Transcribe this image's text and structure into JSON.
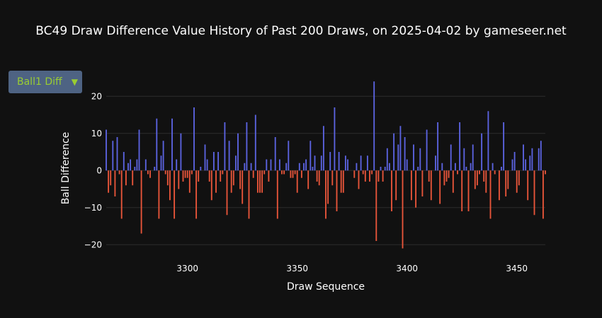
{
  "title": "BC49 Draw Difference Value History of Past 200 Draws, on 2025-04-02 by gameseer.net",
  "dropdown": {
    "selected": "Ball1 Diff",
    "arrow_icon": "triangle-down-icon"
  },
  "colors": {
    "positive": "#5b63e0",
    "negative": "#e8553a",
    "grid": "#2c2c2c",
    "background": "#111111",
    "dropdown_bg": "#4e6383",
    "dropdown_text": "#9acd32"
  },
  "chart_data": {
    "type": "bar",
    "xlabel": "Draw Sequence",
    "ylabel": "Ball Difference",
    "xlim": [
      3263,
      3463
    ],
    "ylim": [
      -23,
      25
    ],
    "xticks": [
      3300,
      3350,
      3400,
      3450
    ],
    "yticks": [
      -20,
      -10,
      0,
      10,
      20
    ],
    "grid": true,
    "x_start": 3263,
    "values": [
      11,
      -6,
      -4,
      8,
      -7,
      9,
      -1,
      -13,
      5,
      -4,
      2,
      3,
      -4,
      1,
      3,
      11,
      -17,
      0,
      3,
      -1,
      -2,
      0,
      1,
      14,
      -13,
      4,
      8,
      -1,
      -4,
      -8,
      14,
      -13,
      3,
      -5,
      10,
      -3,
      -2,
      -2,
      -6,
      -1,
      17,
      -13,
      -3,
      1,
      0,
      7,
      3,
      -3,
      -8,
      5,
      -6,
      5,
      -3,
      -1,
      13,
      -12,
      8,
      -6,
      -4,
      4,
      10,
      -5,
      -9,
      2,
      13,
      -13,
      2,
      -2,
      15,
      -6,
      -6,
      -6,
      -1,
      3,
      -3,
      3,
      0,
      9,
      -13,
      3,
      -1,
      -1,
      2,
      8,
      -2,
      -2,
      -1,
      -6,
      2,
      -2,
      2,
      3,
      -5,
      8,
      1,
      4,
      -3,
      -4,
      4,
      12,
      -13,
      -9,
      5,
      -4,
      17,
      -11,
      5,
      -6,
      -6,
      4,
      3,
      0,
      0,
      -2,
      2,
      -5,
      4,
      -1,
      -3,
      4,
      -3,
      -1,
      24,
      -19,
      -3,
      1,
      -3,
      1,
      6,
      2,
      -11,
      10,
      -8,
      7,
      12,
      -21,
      9,
      3,
      0,
      -8,
      7,
      -10,
      1,
      6,
      -7,
      0,
      11,
      -3,
      -8,
      0,
      4,
      13,
      -9,
      2,
      -4,
      -3,
      -2,
      7,
      -6,
      2,
      -1,
      13,
      -11,
      6,
      1,
      -11,
      2,
      7,
      -5,
      -4,
      -1,
      10,
      -3,
      -6,
      16,
      -13,
      2,
      -1,
      0,
      -8,
      1,
      13,
      -7,
      -5,
      0,
      3,
      5,
      -6,
      -4,
      0,
      7,
      3,
      -8,
      4,
      6,
      -12,
      0,
      6,
      8,
      -13,
      -1
    ]
  }
}
